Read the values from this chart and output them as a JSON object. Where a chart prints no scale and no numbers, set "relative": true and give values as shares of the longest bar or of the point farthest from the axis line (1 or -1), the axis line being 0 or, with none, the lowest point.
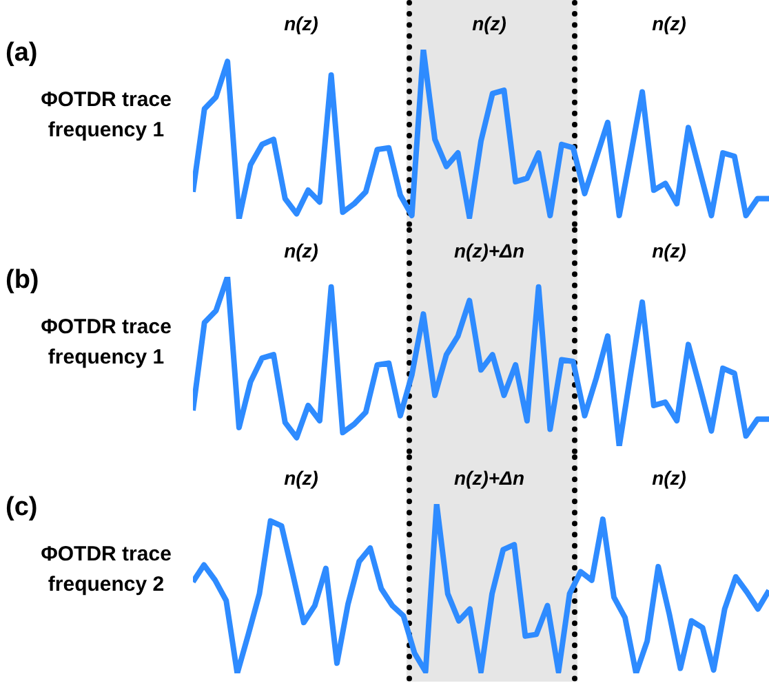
{
  "chart_data": [
    {
      "type": "line",
      "title": "(a)",
      "ylabel": "ΦOTDR trace frequency 1",
      "relative": true,
      "legend": false,
      "marker": "none",
      "line_style": "solid",
      "categories": [
        null,
        null,
        null,
        null,
        null,
        null,
        null,
        null,
        null,
        null,
        null,
        null,
        null,
        null,
        null,
        null,
        null,
        null,
        null,
        null,
        null,
        null,
        null,
        null,
        null,
        null,
        null,
        null,
        null,
        null,
        null,
        null,
        null,
        null,
        null,
        null,
        null,
        null,
        null,
        null,
        null,
        null,
        null,
        null,
        null,
        null,
        null,
        null,
        null,
        null,
        null
      ],
      "series": [
        {
          "color": "#2e8bff",
          "values": [
            0.16,
            0.65,
            0.72,
            0.93,
            0,
            0.32,
            0.44,
            0.47,
            0.12,
            0.03,
            0.17,
            0.1,
            0.85,
            0.04,
            0.09,
            0.16,
            0.41,
            0.42,
            0.14,
            0.02,
            1,
            0.47,
            0.31,
            0.39,
            0.01,
            0.46,
            0.74,
            0.76,
            0.22,
            0.24,
            0.39,
            0.02,
            0.44,
            0.42,
            0.15,
            0.36,
            0.57,
            0.02,
            0.38,
            0.75,
            0.17,
            0.21,
            0.09,
            0.54,
            0.28,
            0.02,
            0.39,
            0.37,
            0.02,
            0.12,
            0.12
          ]
        }
      ],
      "annotations": [
        "n(z)",
        "n(z)",
        "n(z)"
      ]
    },
    {
      "type": "line",
      "title": "(b)",
      "ylabel": "ΦOTDR trace frequency 1",
      "relative": true,
      "legend": false,
      "marker": "none",
      "line_style": "solid",
      "categories": [
        null,
        null,
        null,
        null,
        null,
        null,
        null,
        null,
        null,
        null,
        null,
        null,
        null,
        null,
        null,
        null,
        null,
        null,
        null,
        null,
        null,
        null,
        null,
        null,
        null,
        null,
        null,
        null,
        null,
        null,
        null,
        null,
        null,
        null,
        null,
        null,
        null,
        null,
        null,
        null,
        null,
        null,
        null,
        null,
        null,
        null,
        null,
        null,
        null,
        null,
        null
      ],
      "series": [
        {
          "color": "#2e8bff",
          "values": [
            0.21,
            0.73,
            0.8,
            1,
            0.11,
            0.38,
            0.52,
            0.54,
            0.14,
            0.05,
            0.24,
            0.15,
            0.94,
            0.08,
            0.13,
            0.2,
            0.48,
            0.49,
            0.18,
            0.42,
            0.78,
            0.3,
            0.54,
            0.65,
            0.86,
            0.45,
            0.54,
            0.3,
            0.48,
            0.15,
            0.94,
            0.1,
            0.51,
            0.5,
            0.18,
            0.4,
            0.65,
            0,
            0.43,
            0.85,
            0.24,
            0.26,
            0.15,
            0.6,
            0.35,
            0.09,
            0.46,
            0.43,
            0.06,
            0.16,
            0.16
          ]
        }
      ],
      "annotations": [
        "n(z)",
        "n(z)+Δn",
        "n(z)"
      ]
    },
    {
      "type": "line",
      "title": "(c)",
      "ylabel": "ΦOTDR trace frequency 2",
      "relative": true,
      "legend": false,
      "marker": "none",
      "line_style": "solid",
      "categories": [
        null,
        null,
        null,
        null,
        null,
        null,
        null,
        null,
        null,
        null,
        null,
        null,
        null,
        null,
        null,
        null,
        null,
        null,
        null,
        null,
        null,
        null,
        null,
        null,
        null,
        null,
        null,
        null,
        null,
        null,
        null,
        null,
        null,
        null,
        null,
        null,
        null,
        null,
        null,
        null,
        null,
        null,
        null,
        null,
        null,
        null,
        null,
        null,
        null,
        null,
        null,
        null,
        null
      ],
      "series": [
        {
          "color": "#2e8bff",
          "values": [
            0.54,
            0.64,
            0.55,
            0.43,
            0,
            0.23,
            0.47,
            0.9,
            0.87,
            0.59,
            0.3,
            0.4,
            0.62,
            0.06,
            0.41,
            0.66,
            0.74,
            0.5,
            0.4,
            0.34,
            0.12,
            0.01,
            1,
            0.47,
            0.31,
            0.38,
            0.01,
            0.47,
            0.73,
            0.76,
            0.22,
            0.23,
            0.4,
            0.01,
            0.47,
            0.6,
            0.55,
            0.91,
            0.45,
            0.33,
            0,
            0.19,
            0.63,
            0.35,
            0.03,
            0.31,
            0.27,
            0.02,
            0.38,
            0.57,
            0.48,
            0.38,
            0.49
          ]
        }
      ],
      "annotations": [
        "n(z)",
        "n(z)+Δn",
        "n(z)"
      ]
    }
  ]
}
